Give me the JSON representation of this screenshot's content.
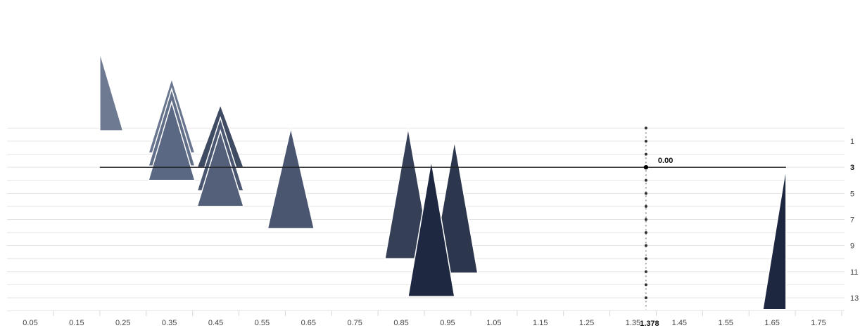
{
  "chart_data": {
    "type": "scatter",
    "title": "",
    "xlabel": "",
    "ylabel": "",
    "x_ticks": [
      "0.05",
      "0.15",
      "0.25",
      "0.35",
      "0.45",
      "0.55",
      "0.65",
      "0.75",
      "0.85",
      "0.95",
      "1.05",
      "1.15",
      "1.25",
      "1.35",
      "1.45",
      "1.55",
      "1.65",
      "1.75"
    ],
    "y_ticks": [
      "1",
      "3",
      "5",
      "7",
      "9",
      "11",
      "13"
    ],
    "y_tick_values": [
      1,
      3,
      5,
      7,
      9,
      11,
      13
    ],
    "y_bold_tick": "3",
    "xlim": [
      0,
      1.8
    ],
    "ylim": [
      13.9,
      -5.8
    ],
    "reference_line": {
      "y": 3,
      "x_start": 0.2,
      "x_end": 1.68
    },
    "marker_line": {
      "x": 1.378,
      "value_label": "1.378"
    },
    "annotation": {
      "text": "0.00",
      "x": 1.378,
      "y": 3
    },
    "marker_dot_y": [
      0,
      1,
      2,
      3,
      4,
      5,
      6,
      7,
      8,
      9,
      10,
      11,
      12,
      13
    ],
    "series": [
      {
        "name": "",
        "shape": "triangles",
        "points": [
          {
            "x": 0.2,
            "y_top": -5.8,
            "y_base": 0.2,
            "half_width_left": 0,
            "half_width_right": 0.05,
            "color": "#6d7a92"
          },
          {
            "x": 0.355,
            "y_top": -3.8,
            "y_base": 1.9,
            "half_width": 0.05,
            "color": "#6a7690"
          },
          {
            "x": 0.355,
            "y_top": -3.0,
            "y_base": 2.9,
            "half_width": 0.05,
            "color": "#626f89"
          },
          {
            "x": 0.355,
            "y_top": -2.0,
            "y_base": 4.0,
            "half_width": 0.05,
            "color": "#5b6883"
          },
          {
            "x": 0.46,
            "y_top": -1.8,
            "y_base": 3.0,
            "half_width": 0.05,
            "color": "#3f4a63"
          },
          {
            "x": 0.46,
            "y_top": -0.8,
            "y_base": 4.8,
            "half_width": 0.05,
            "color": "#4c5872"
          },
          {
            "x": 0.46,
            "y_top": 0.2,
            "y_base": 6.0,
            "half_width": 0.05,
            "color": "#54607a"
          },
          {
            "x": 0.612,
            "y_top": 0.0,
            "y_base": 7.7,
            "half_width": 0.05,
            "color": "#4a5670"
          },
          {
            "x": 0.865,
            "y_top": 0.0,
            "y_base": 10.0,
            "half_width": 0.05,
            "color": "#353f56"
          },
          {
            "x": 0.965,
            "y_top": 1.0,
            "y_base": 11.1,
            "half_width": 0.05,
            "color": "#2c364c"
          },
          {
            "x": 0.915,
            "y_top": 2.5,
            "y_base": 12.9,
            "half_width": 0.05,
            "color": "#1e2840"
          },
          {
            "x": 1.68,
            "y_top": 3.0,
            "y_base": 13.9,
            "half_width_left": 0.05,
            "half_width_right": 0,
            "color": "#1d2740"
          }
        ]
      }
    ]
  }
}
